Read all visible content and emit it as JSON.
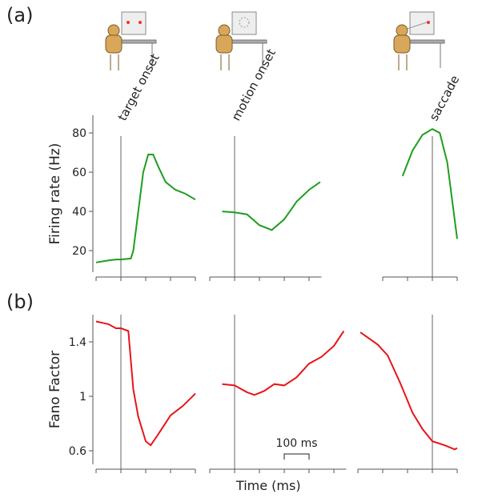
{
  "chart_data": [
    {
      "type": "line",
      "panel_label": "(a)",
      "ylabel": "Firing rate (Hz)",
      "annotation": "target onset",
      "event_x": 0,
      "color": "#1e9e1e",
      "x": [
        -100,
        -50,
        -20,
        0,
        40,
        50,
        70,
        90,
        110,
        130,
        150,
        180,
        220,
        260,
        300
      ],
      "values": [
        14,
        15,
        15.5,
        15.5,
        16,
        20,
        40,
        60,
        69,
        69,
        63,
        55,
        51,
        49,
        46
      ],
      "xlim": [
        -100,
        300
      ],
      "xticks": [
        -100,
        0,
        100,
        200,
        300
      ],
      "ylim": [
        9,
        89
      ],
      "yticks": [
        20,
        40,
        60,
        80
      ]
    },
    {
      "type": "line",
      "annotation": "motion onset",
      "event_x": 0,
      "color": "#1e9e1e",
      "x": [
        -50,
        0,
        50,
        100,
        150,
        200,
        250,
        300,
        345
      ],
      "values": [
        40,
        39.5,
        38.5,
        33,
        30.5,
        36,
        45,
        51,
        55
      ],
      "xlim": [
        -100,
        350
      ],
      "xticks": [
        -100,
        0,
        100,
        200,
        300
      ],
      "ylim": [
        9,
        89
      ]
    },
    {
      "type": "line",
      "annotation": "saccade",
      "event_x": 0,
      "color": "#1e9e1e",
      "x": [
        -120,
        -80,
        -40,
        0,
        30,
        60,
        100
      ],
      "values": [
        58,
        71,
        79,
        82,
        80,
        65,
        26
      ],
      "xlim": [
        -200,
        100
      ],
      "xticks": [
        -200,
        -100,
        0,
        100
      ],
      "ylim": [
        9,
        89
      ]
    },
    {
      "type": "line",
      "panel_label": "(b)",
      "ylabel": "Fano Factor",
      "event_x": 0,
      "color": "#e8141a",
      "x": [
        -100,
        -50,
        -20,
        0,
        30,
        50,
        70,
        100,
        120,
        150,
        200,
        250,
        300
      ],
      "values": [
        1.55,
        1.53,
        1.5,
        1.5,
        1.48,
        1.05,
        0.85,
        0.67,
        0.64,
        0.72,
        0.86,
        0.93,
        1.02
      ],
      "xlim": [
        -100,
        300
      ],
      "xticks": [
        -100,
        0,
        100,
        200,
        300
      ],
      "ylim": [
        0.5,
        1.6
      ],
      "yticks": [
        0.6,
        1,
        1.4
      ]
    },
    {
      "type": "line",
      "xlabel": "Time (ms)",
      "event_x": 0,
      "color": "#e8141a",
      "scale_bar": {
        "label": "100 ms",
        "start": 200,
        "length": 100
      },
      "x": [
        -50,
        0,
        50,
        80,
        120,
        160,
        200,
        250,
        300,
        350,
        400,
        440
      ],
      "values": [
        1.09,
        1.08,
        1.03,
        1.01,
        1.04,
        1.09,
        1.08,
        1.14,
        1.24,
        1.29,
        1.37,
        1.48
      ],
      "xlim": [
        -100,
        450
      ],
      "xticks": [
        -100,
        0,
        100,
        200,
        300,
        400
      ],
      "ylim": [
        0.5,
        1.6
      ]
    },
    {
      "type": "line",
      "event_x": 0,
      "color": "#e8141a",
      "x": [
        -290,
        -220,
        -180,
        -130,
        -80,
        -40,
        0,
        50,
        90,
        100
      ],
      "values": [
        1.47,
        1.38,
        1.3,
        1.1,
        0.88,
        0.76,
        0.67,
        0.64,
        0.61,
        0.62
      ],
      "xlim": [
        -300,
        100
      ],
      "xticks": [
        -300,
        -200,
        -100,
        0,
        100
      ],
      "ylim": [
        0.5,
        1.6
      ]
    }
  ]
}
